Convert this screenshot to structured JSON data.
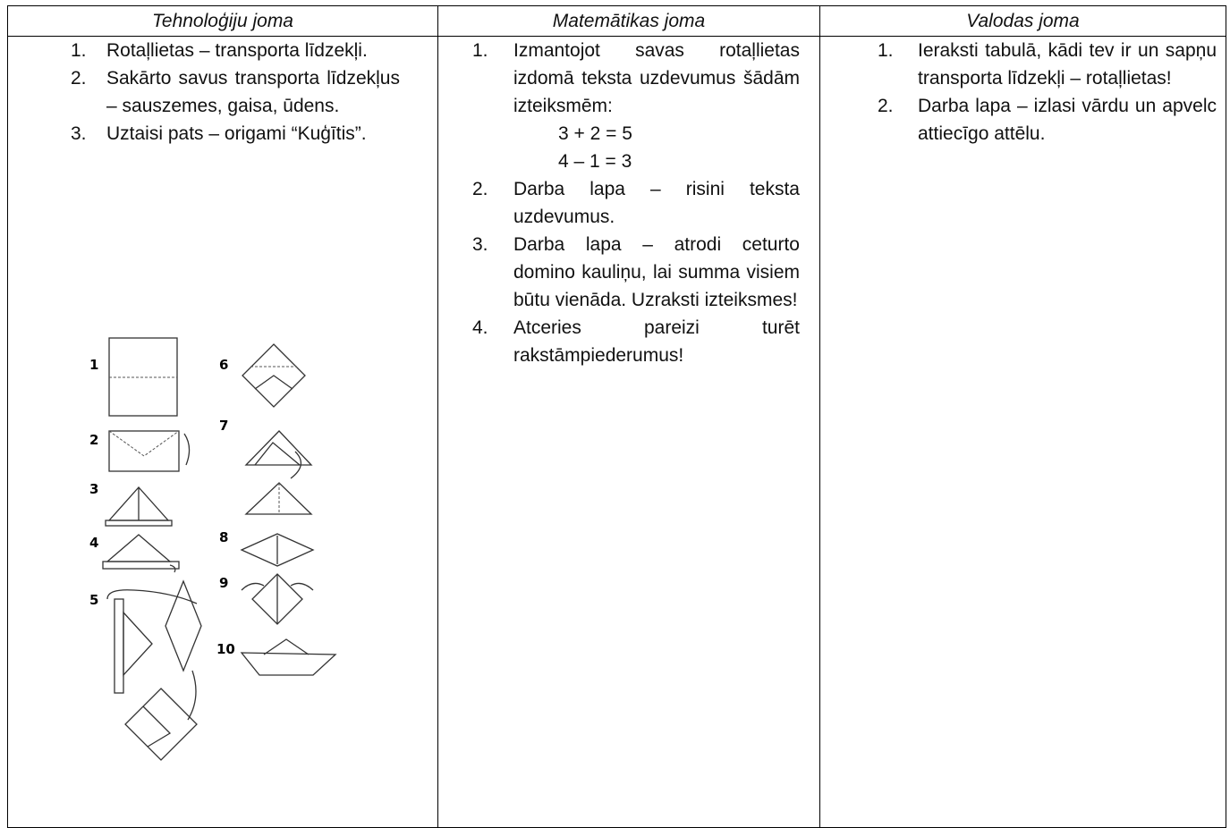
{
  "table": {
    "headers": [
      "Tehnoloģiju joma",
      "Matemātikas joma",
      "Valodas joma"
    ],
    "columns": [
      {
        "items": [
          {
            "number": "1.",
            "text": "Rotaļlietas – transporta līdzekļi."
          },
          {
            "number": "2.",
            "text": "Sakārto savus transporta līdzekļus – sauszemes, gaisa, ūdens."
          },
          {
            "number": "3.",
            "text": "Uztaisi pats – origami “Kuģītis”."
          }
        ]
      },
      {
        "items": [
          {
            "number": "1.",
            "text": "Izmantojot savas rotaļlietas izdomā teksta uzdevumus šādām izteiksmēm:",
            "expressions": [
              "3 + 2 = 5",
              "4 – 1 = 3"
            ]
          },
          {
            "number": "2.",
            "text": "Darba lapa – risini teksta uzdevumus."
          },
          {
            "number": "3.",
            "text": "Darba lapa – atrodi ceturto domino kauliņu, lai summa visiem būtu vienāda. Uzraksti izteiksmes!"
          },
          {
            "number": "4.",
            "text": "Atceries pareizi turēt rakstāmpiederumus!"
          }
        ]
      },
      {
        "items": [
          {
            "number": "1.",
            "text": "Ieraksti tabulā, kādi tev ir un sapņu transporta līdzekļi – rotaļlietas!"
          },
          {
            "number": "2.",
            "text": "Darba lapa – izlasi vārdu un apvelc attiecīgo attēlu."
          }
        ]
      }
    ]
  },
  "diagram": {
    "steps": [
      "1",
      "2",
      "3",
      "4",
      "5",
      "6",
      "7",
      "8",
      "9",
      "10"
    ]
  }
}
